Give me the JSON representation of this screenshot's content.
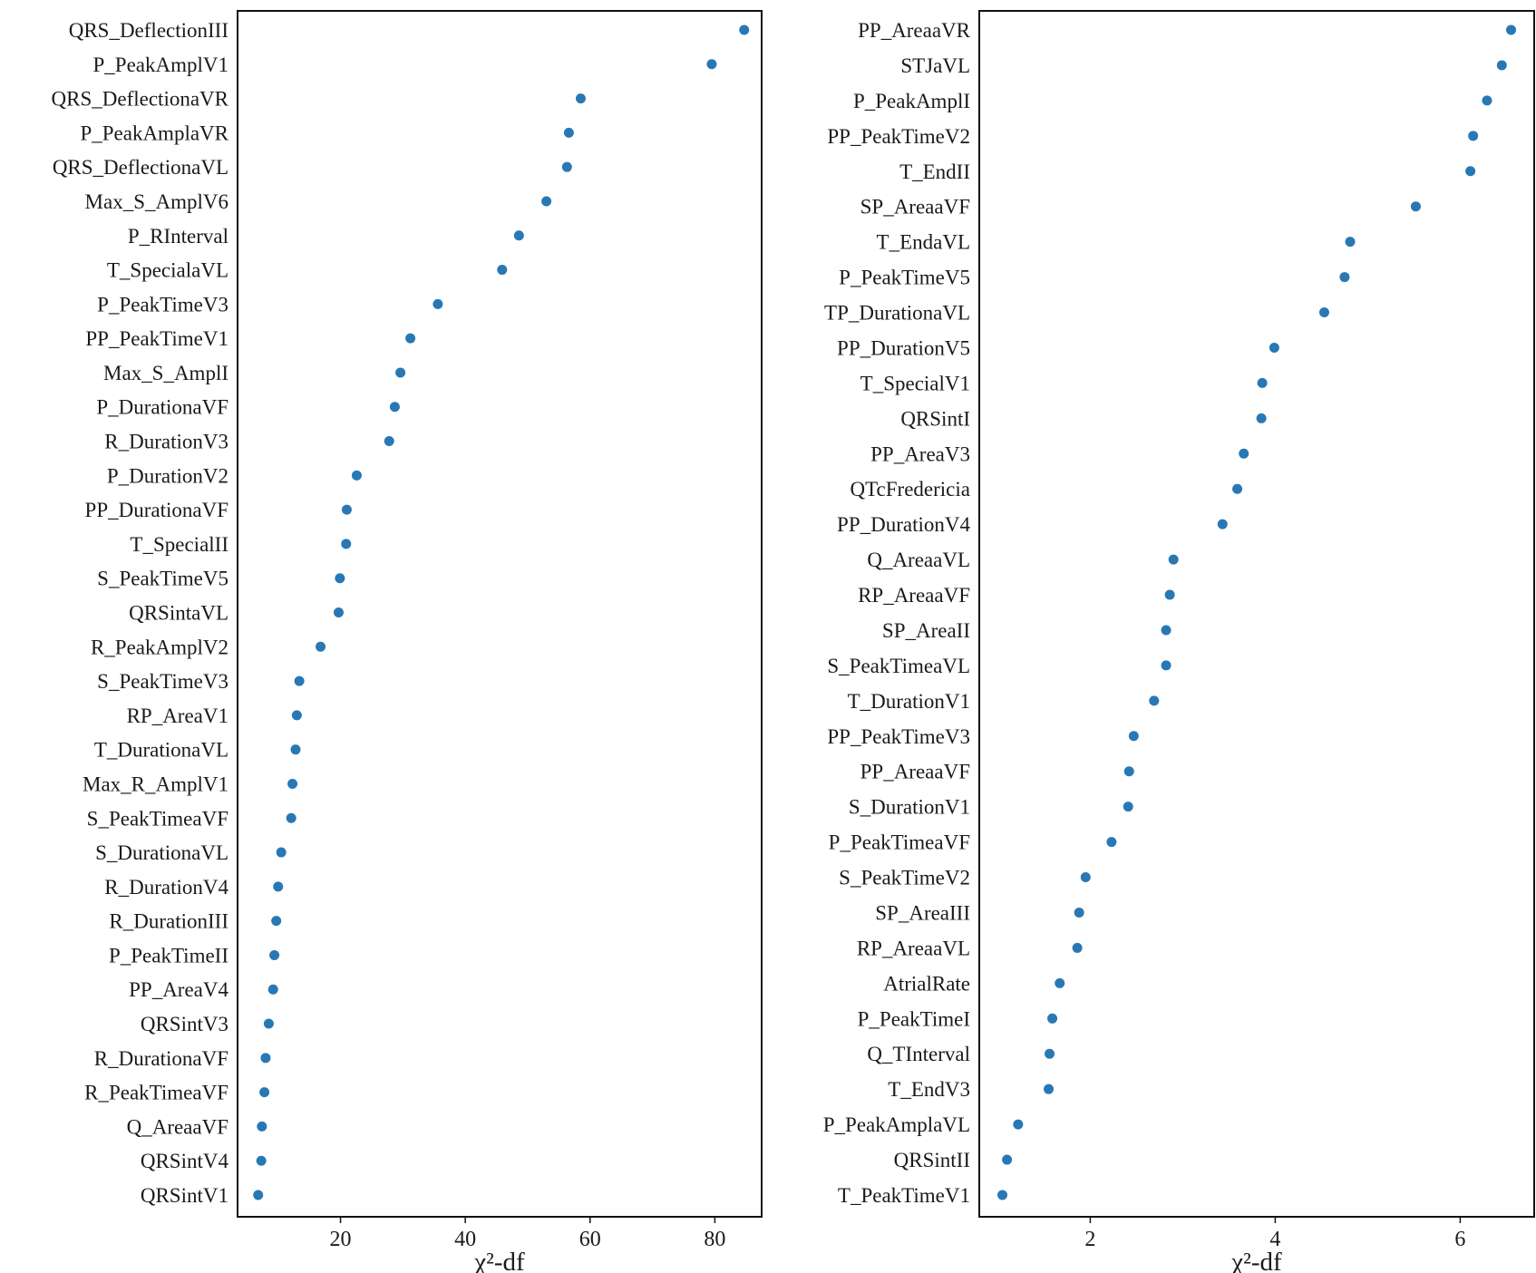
{
  "chart_data": [
    {
      "type": "scatter",
      "xlabel": "χ²-df",
      "xlim": [
        3.5,
        87.5
      ],
      "xticks": [
        20,
        40,
        60,
        80
      ],
      "marker_color": "#2878b5",
      "categories": [
        "QRS_DeflectionIII",
        "P_PeakAmplV1",
        "QRS_DeflectionaVR",
        "P_PeakAmplaVR",
        "QRS_DeflectionaVL",
        "Max_S_AmplV6",
        "P_RInterval",
        "T_SpecialaVL",
        "P_PeakTimeV3",
        "PP_PeakTimeV1",
        "Max_S_AmplI",
        "P_DurationaVF",
        "R_DurationV3",
        "P_DurationV2",
        "PP_DurationaVF",
        "T_SpecialII",
        "S_PeakTimeV5",
        "QRSintaVL",
        "R_PeakAmplV2",
        "S_PeakTimeV3",
        "RP_AreaV1",
        "T_DurationaVL",
        "Max_R_AmplV1",
        "S_PeakTimeaVF",
        "S_DurationaVL",
        "R_DurationV4",
        "R_DurationIII",
        "P_PeakTimeII",
        "PP_AreaV4",
        "QRSintV3",
        "R_DurationaVF",
        "R_PeakTimeaVF",
        "Q_AreaaVF",
        "QRSintV4",
        "QRSintV1"
      ],
      "values": [
        84.7,
        79.5,
        58.5,
        56.6,
        56.3,
        53.0,
        48.6,
        45.9,
        35.6,
        31.2,
        29.6,
        28.7,
        27.8,
        22.6,
        21.0,
        20.9,
        19.9,
        19.7,
        16.8,
        13.4,
        13.0,
        12.8,
        12.3,
        12.1,
        10.5,
        10.0,
        9.7,
        9.4,
        9.2,
        8.5,
        8.0,
        7.8,
        7.4,
        7.3,
        6.8
      ]
    },
    {
      "type": "scatter",
      "xlabel": "χ²-df",
      "xlim": [
        0.8,
        6.8
      ],
      "xticks": [
        2,
        4,
        6
      ],
      "marker_color": "#2878b5",
      "categories": [
        "PP_AreaaVR",
        "STJaVL",
        "P_PeakAmplI",
        "PP_PeakTimeV2",
        "T_EndII",
        "SP_AreaaVF",
        "T_EndaVL",
        "P_PeakTimeV5",
        "TP_DurationaVL",
        "PP_DurationV5",
        "T_SpecialV1",
        "QRSintI",
        "PP_AreaV3",
        "QTcFredericia",
        "PP_DurationV4",
        "Q_AreaaVL",
        "RP_AreaaVF",
        "SP_AreaII",
        "S_PeakTimeaVL",
        "T_DurationV1",
        "PP_PeakTimeV3",
        "PP_AreaaVF",
        "S_DurationV1",
        "P_PeakTimeaVF",
        "S_PeakTimeV2",
        "SP_AreaIII",
        "RP_AreaaVL",
        "AtrialRate",
        "P_PeakTimeI",
        "Q_TInterval",
        "T_EndV3",
        "P_PeakAmplaVL",
        "QRSintII",
        "T_PeakTimeV1"
      ],
      "values": [
        6.55,
        6.45,
        6.29,
        6.14,
        6.11,
        5.52,
        4.81,
        4.75,
        4.53,
        3.99,
        3.86,
        3.85,
        3.66,
        3.59,
        3.43,
        2.9,
        2.86,
        2.82,
        2.82,
        2.69,
        2.47,
        2.42,
        2.41,
        2.23,
        1.95,
        1.88,
        1.86,
        1.67,
        1.59,
        1.56,
        1.55,
        1.22,
        1.1,
        1.05
      ]
    }
  ]
}
